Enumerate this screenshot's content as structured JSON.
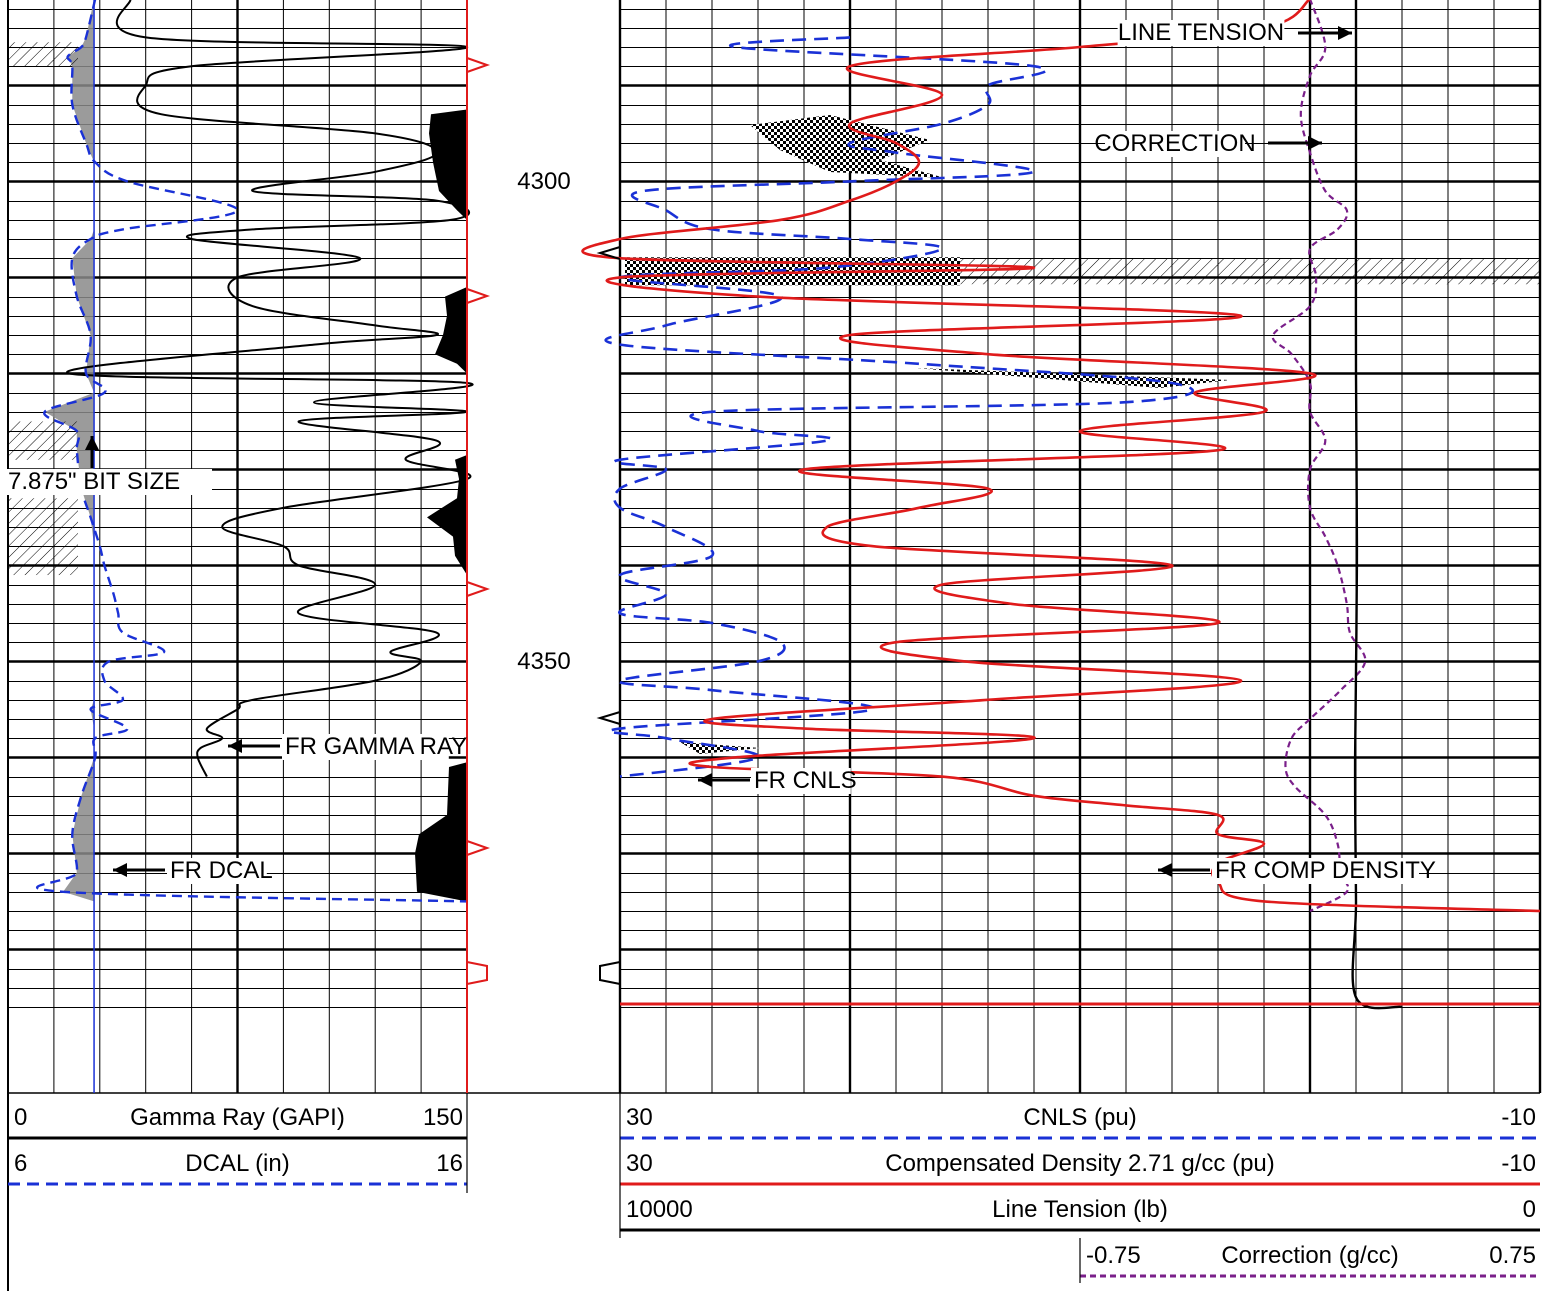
{
  "chart_data": {
    "type": "line",
    "title": "",
    "depth_axis": {
      "labels": [
        "4300",
        "4350"
      ],
      "values": [
        4300,
        4350
      ]
    },
    "tracks": [
      {
        "name": "track-1",
        "grid": "linear",
        "curves": [
          {
            "name": "Gamma Ray (GAPI)",
            "label": "FR GAMMA RAY",
            "min": "0",
            "max": "150",
            "color": "#000000",
            "style": "solid",
            "samples": [
              [
                4281,
                40
              ],
              [
                4285,
                45
              ],
              [
                4286,
                150
              ],
              [
                4288,
                60
              ],
              [
                4290,
                45
              ],
              [
                4293,
                50
              ],
              [
                4295,
                120
              ],
              [
                4297,
                140
              ],
              [
                4299,
                120
              ],
              [
                4301,
                80
              ],
              [
                4302,
                140
              ],
              [
                4304,
                145
              ],
              [
                4305,
                80
              ],
              [
                4306,
                60
              ],
              [
                4308,
                115
              ],
              [
                4310,
                75
              ],
              [
                4313,
                80
              ],
              [
                4315,
                120
              ],
              [
                4316,
                140
              ],
              [
                4317,
                100
              ],
              [
                4320,
                20
              ],
              [
                4321,
                150
              ],
              [
                4323,
                100
              ],
              [
                4324,
                150
              ],
              [
                4325,
                95
              ],
              [
                4327,
                140
              ],
              [
                4329,
                130
              ],
              [
                4331,
                150
              ],
              [
                4334,
                90
              ],
              [
                4336,
                70
              ],
              [
                4338,
                90
              ],
              [
                4340,
                95
              ],
              [
                4342,
                120
              ],
              [
                4345,
                95
              ],
              [
                4347,
                140
              ],
              [
                4349,
                125
              ],
              [
                4350,
                135
              ],
              [
                4352,
                120
              ],
              [
                4354,
                80
              ],
              [
                4355,
                75
              ],
              [
                4357,
                65
              ],
              [
                4358,
                70
              ],
              [
                4359,
                63
              ],
              [
                4360,
                62
              ],
              [
                4362,
                65
              ]
            ]
          },
          {
            "name": "DCAL (in)",
            "label": "FR DCAL",
            "min": "6",
            "max": "16",
            "color": "#1a31d6",
            "style": "dashed",
            "samples": [
              [
                4281,
                7.9
              ],
              [
                4285,
                7.7
              ],
              [
                4286,
                7.6
              ],
              [
                4287,
                7.3
              ],
              [
                4288,
                7.4
              ],
              [
                4292,
                7.4
              ],
              [
                4296,
                7.7
              ],
              [
                4298,
                7.9
              ],
              [
                4300,
                8.6
              ],
              [
                4303,
                11.0
              ],
              [
                4305,
                8.5
              ],
              [
                4306,
                7.8
              ],
              [
                4308,
                7.4
              ],
              [
                4312,
                7.5
              ],
              [
                4316,
                7.8
              ],
              [
                4320,
                7.7
              ],
              [
                4322,
                8.1
              ],
              [
                4324,
                6.8
              ],
              [
                4326,
                7.5
              ],
              [
                4328,
                7.5
              ],
              [
                4332,
                7.6
              ],
              [
                4335,
                7.8
              ],
              [
                4338,
                8.0
              ],
              [
                4340,
                8.1
              ],
              [
                4343,
                8.3
              ],
              [
                4345,
                8.4
              ],
              [
                4347,
                8.5
              ],
              [
                4349,
                9.4
              ],
              [
                4350,
                8.2
              ],
              [
                4352,
                8.1
              ],
              [
                4354,
                8.5
              ],
              [
                4355,
                7.8
              ],
              [
                4357,
                8.6
              ],
              [
                4358,
                7.9
              ],
              [
                4360,
                7.9
              ],
              [
                4364,
                7.6
              ],
              [
                4368,
                7.4
              ],
              [
                4372,
                7.5
              ],
              [
                4374,
                7.2
              ],
              [
                4375,
                16.0
              ]
            ]
          }
        ],
        "reference_line": {
          "label": "7.875\" BIT SIZE",
          "value": 7.875,
          "color": "#1a31d6"
        }
      },
      {
        "name": "track-2",
        "grid": "linear",
        "curves": [
          {
            "name": "CNLS (pu)",
            "label": "FR CNLS",
            "min": "30",
            "max": "-10",
            "color": "#1a31d6",
            "style": "dashed",
            "samples": [
              [
                4285,
                20
              ],
              [
                4286,
                25
              ],
              [
                4288,
                12
              ],
              [
                4290,
                14
              ],
              [
                4292,
                14
              ],
              [
                4294,
                16
              ],
              [
                4296,
                20
              ],
              [
                4297,
                18
              ],
              [
                4299,
                12
              ],
              [
                4300,
                20
              ],
              [
                4301,
                29
              ],
              [
                4303,
                28
              ],
              [
                4305,
                26
              ],
              [
                4306,
                20
              ],
              [
                4307,
                16
              ],
              [
                4309,
                21
              ],
              [
                4310,
                30
              ],
              [
                4312,
                23
              ],
              [
                4315,
                28
              ],
              [
                4317,
                30
              ],
              [
                4319,
                17
              ],
              [
                4321,
                6
              ],
              [
                4323,
                8
              ],
              [
                4324,
                26
              ],
              [
                4326,
                24
              ],
              [
                4327,
                21
              ],
              [
                4329,
                30
              ],
              [
                4330,
                28
              ],
              [
                4332,
                30
              ],
              [
                4334,
                30
              ],
              [
                4336,
                28
              ],
              [
                4339,
                26
              ],
              [
                4341,
                30
              ],
              [
                4343,
                28
              ],
              [
                4345,
                30
              ],
              [
                4346,
                26
              ],
              [
                4348,
                23
              ],
              [
                4350,
                24
              ],
              [
                4352,
                30
              ],
              [
                4353,
                26
              ],
              [
                4355,
                19
              ],
              [
                4357,
                30
              ],
              [
                4358,
                28
              ],
              [
                4360,
                24
              ],
              [
                4362,
                30
              ]
            ]
          },
          {
            "name": "Compensated Density 2.71 g/cc (pu)",
            "label": "FR COMP DENSITY",
            "min": "30",
            "max": "-10",
            "color": "#e01b1b",
            "style": "solid",
            "samples": [
              [
                4281,
                0
              ],
              [
                4284,
                2
              ],
              [
                4286,
                10
              ],
              [
                4288,
                20
              ],
              [
                4291,
                16
              ],
              [
                4294,
                20
              ],
              [
                4296,
                18
              ],
              [
                4298,
                17
              ],
              [
                4300,
                18
              ],
              [
                4302,
                20
              ],
              [
                4304,
                23
              ],
              [
                4306,
                30
              ],
              [
                4308,
                30
              ],
              [
                4309,
                12
              ],
              [
                4310,
                30
              ],
              [
                4312,
                24
              ],
              [
                4314,
                3
              ],
              [
                4316,
                20
              ],
              [
                4318,
                14
              ],
              [
                4320,
                0
              ],
              [
                4322,
                5
              ],
              [
                4324,
                2
              ],
              [
                4326,
                10
              ],
              [
                4328,
                4
              ],
              [
                4330,
                22
              ],
              [
                4332,
                14
              ],
              [
                4334,
                17
              ],
              [
                4336,
                21
              ],
              [
                4338,
                19
              ],
              [
                4340,
                6
              ],
              [
                4342,
                16
              ],
              [
                4344,
                13
              ],
              [
                4346,
                4
              ],
              [
                4348,
                18
              ],
              [
                4350,
                15
              ],
              [
                4352,
                3
              ],
              [
                4354,
                14
              ],
              [
                4356,
                26
              ],
              [
                4357,
                22
              ],
              [
                4358,
                12
              ],
              [
                4360,
                25
              ],
              [
                4361,
                26
              ],
              [
                4362,
                16
              ],
              [
                4364,
                12
              ],
              [
                4365,
                8
              ],
              [
                4366,
                4
              ],
              [
                4368,
                4
              ],
              [
                4369,
                2
              ],
              [
                4371,
                4
              ],
              [
                4373,
                4
              ],
              [
                4375,
                2
              ],
              [
                4376,
                -10
              ]
            ]
          },
          {
            "name": "Line Tension (lb)",
            "label": "LINE TENSION",
            "min": "10000",
            "max": "0",
            "color": "#000000",
            "style": "solid",
            "samples": [
              [
                4281,
                2000
              ],
              [
                4300,
                2000
              ],
              [
                4320,
                2000
              ],
              [
                4340,
                1990
              ],
              [
                4360,
                2010
              ],
              [
                4375,
                2000
              ],
              [
                4385,
                2000
              ],
              [
                4386,
                1500
              ]
            ]
          },
          {
            "name": "Correction (g/cc)",
            "label": "CORRECTION",
            "min": "-0.75",
            "max": "0.75",
            "color": "#7a1f8a",
            "style": "dotted",
            "samples": [
              [
                4281,
                0.0
              ],
              [
                4286,
                0.05
              ],
              [
                4289,
                0.0
              ],
              [
                4293,
                -0.03
              ],
              [
                4297,
                0.0
              ],
              [
                4301,
                0.05
              ],
              [
                4303,
                0.12
              ],
              [
                4305,
                0.09
              ],
              [
                4307,
                0.0
              ],
              [
                4310,
                0.02
              ],
              [
                4313,
                0.0
              ],
              [
                4316,
                -0.12
              ],
              [
                4318,
                -0.06
              ],
              [
                4321,
                0.0
              ],
              [
                4324,
                0.0
              ],
              [
                4327,
                0.05
              ],
              [
                4330,
                0.0
              ],
              [
                4334,
                0.0
              ],
              [
                4337,
                0.05
              ],
              [
                4340,
                0.09
              ],
              [
                4344,
                0.12
              ],
              [
                4347,
                0.13
              ],
              [
                4350,
                0.18
              ],
              [
                4353,
                0.1
              ],
              [
                4356,
                0.0
              ],
              [
                4358,
                -0.06
              ],
              [
                4361,
                -0.08
              ],
              [
                4363,
                -0.05
              ],
              [
                4366,
                0.05
              ],
              [
                4369,
                0.09
              ],
              [
                4372,
                0.1
              ],
              [
                4374,
                0.12
              ],
              [
                4376,
                0.0
              ]
            ]
          }
        ]
      }
    ],
    "annotations": [
      "FR GAMMA RAY",
      "FR DCAL",
      "7.875\" BIT SIZE",
      "LINE TENSION",
      "CORRECTION",
      "FR CNLS",
      "FR COMP DENSITY"
    ],
    "colors": {
      "cnls": "#1a31d6",
      "density": "#e01b1b",
      "tension": "#000000",
      "correction": "#7a1f8a",
      "dcal": "#1a31d6",
      "bit_size": "#1a31d6",
      "depth_marker": "#e01b1b"
    }
  }
}
